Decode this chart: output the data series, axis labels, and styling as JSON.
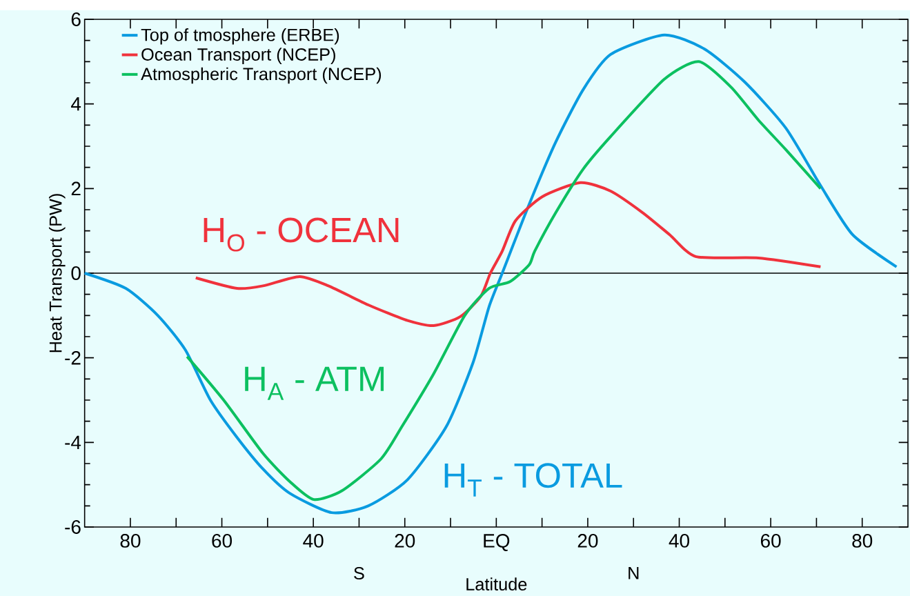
{
  "chart_data": {
    "type": "line",
    "xlabel": "Latitude",
    "ylabel": "Heat Transport (PW)",
    "xlim": [
      -90,
      90
    ],
    "ylim": [
      -6,
      6
    ],
    "xticks": [
      {
        "value": -80,
        "label": "80"
      },
      {
        "value": -70,
        "label": null
      },
      {
        "value": -60,
        "label": "60"
      },
      {
        "value": -50,
        "label": null
      },
      {
        "value": -40,
        "label": "40"
      },
      {
        "value": -30,
        "label": null
      },
      {
        "value": -20,
        "label": "20"
      },
      {
        "value": -10,
        "label": null
      },
      {
        "value": 0,
        "label": "EQ"
      },
      {
        "value": 10,
        "label": null
      },
      {
        "value": 20,
        "label": "20"
      },
      {
        "value": 30,
        "label": null
      },
      {
        "value": 40,
        "label": "40"
      },
      {
        "value": 50,
        "label": null
      },
      {
        "value": 60,
        "label": "60"
      },
      {
        "value": 70,
        "label": null
      },
      {
        "value": 80,
        "label": "80"
      }
    ],
    "yticks": [
      -6,
      -4,
      -2,
      0,
      2,
      4,
      6
    ],
    "legend": "top left",
    "line_style": "solid",
    "ref_lines": [
      {
        "axis": "y",
        "value": 0,
        "color": "#000000"
      }
    ],
    "series": [
      {
        "name": "Top of tmosphere (ERBE)",
        "color": "#0a9be0",
        "x": [
          -90,
          -81,
          -74,
          -68,
          -62.5,
          -56.7,
          -51,
          -45.2,
          -36,
          -28,
          -19.4,
          -10.9,
          -5.1,
          -1.6,
          1.3,
          7.2,
          13,
          19,
          25,
          36.7,
          45.5,
          54.3,
          63.3,
          70.9,
          77.9,
          87.5
        ],
        "values": [
          0,
          -0.36,
          -1.0,
          -1.81,
          -3.0,
          -3.88,
          -4.63,
          -5.2,
          -5.66,
          -5.5,
          -4.88,
          -3.62,
          -2.12,
          -0.8,
          0,
          1.63,
          3.1,
          4.34,
          5.17,
          5.63,
          5.3,
          4.52,
          3.43,
          2.07,
          0.91,
          0.15
        ]
      },
      {
        "name": "Ocean Transport (NCEP)",
        "color": "#f0323c",
        "x": [
          -65.7,
          -56.7,
          -51,
          -43,
          -36.7,
          -28,
          -19.4,
          -13.7,
          -7.9,
          -3.4,
          -1.3,
          1.3,
          4.2,
          10.1,
          18.4,
          25,
          32,
          37.9,
          43.7,
          57.3,
          70.9
        ],
        "values": [
          -0.11,
          -0.36,
          -0.3,
          -0.08,
          -0.3,
          -0.75,
          -1.12,
          -1.24,
          -1.03,
          -0.55,
          0,
          0.52,
          1.24,
          1.81,
          2.14,
          1.94,
          1.43,
          0.91,
          0.39,
          0.36,
          0.15
        ]
      },
      {
        "name": "Atmospheric Transport (NCEP)",
        "color": "#0cc060",
        "x": [
          -67.6,
          -59.6,
          -51,
          -45,
          -39.9,
          -33.7,
          -25.2,
          -20.6,
          -13.7,
          -6.9,
          -1.6,
          3,
          7.2,
          8.4,
          13,
          19,
          25,
          36.7,
          44.3,
          51.3,
          57.3,
          63.3,
          70.9
        ],
        "values": [
          -1.97,
          -3.0,
          -4.26,
          -4.94,
          -5.35,
          -5.14,
          -4.39,
          -3.62,
          -2.38,
          -1.0,
          -0.36,
          -0.2,
          0.2,
          0.52,
          1.43,
          2.46,
          3.23,
          4.58,
          5.0,
          4.4,
          3.62,
          2.92,
          2.0
        ]
      }
    ],
    "annotations": [
      "H$_{T}$ - TOTAL",
      "H$_{O}$ - OCEAN",
      "H$_{A}$ - ATM",
      "S",
      "N"
    ]
  }
}
